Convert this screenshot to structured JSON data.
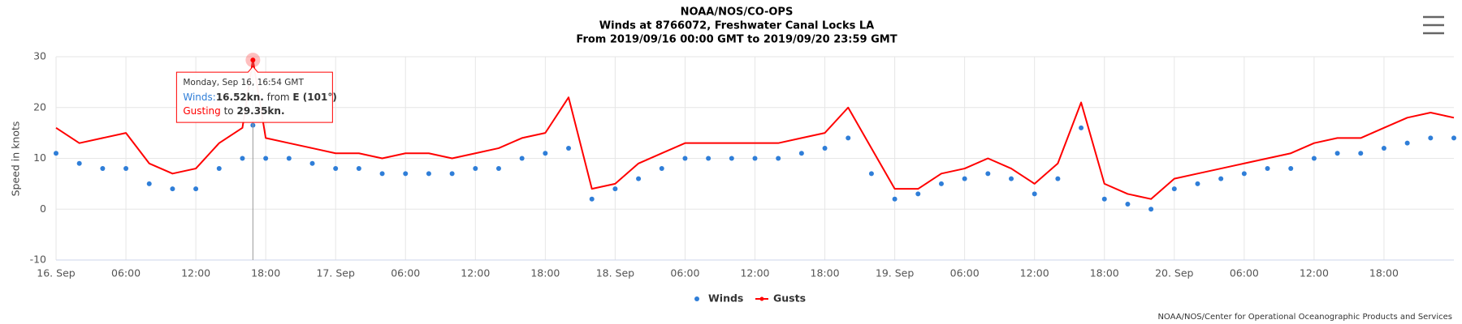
{
  "chart_data": {
    "type": "line",
    "title": "NOAA/NOS/CO-OPS",
    "subtitle": [
      "Winds at 8766072, Freshwater Canal Locks LA",
      "From 2019/09/16 00:00 GMT to 2019/09/20 23:59 GMT"
    ],
    "y_label": "Speed in knots",
    "credit": "NOAA/NOS/Center for Operational Oceanographic Products and Services",
    "x": [
      0,
      2,
      4,
      6,
      8,
      10,
      12,
      14,
      16,
      16.9,
      18,
      20,
      22,
      24,
      26,
      28,
      30,
      32,
      34,
      36,
      38,
      40,
      42,
      44,
      46,
      48,
      50,
      52,
      54,
      56,
      58,
      60,
      62,
      64,
      66,
      68,
      70,
      72,
      74,
      76,
      78,
      80,
      82,
      84,
      86,
      88,
      90,
      92,
      94,
      96,
      98,
      100,
      102,
      104,
      106,
      108,
      110,
      112,
      114,
      116,
      118,
      120
    ],
    "series": [
      {
        "name": "Winds",
        "color": "#2f7ed8",
        "style": "markers",
        "values": [
          11,
          9,
          8,
          8,
          5,
          4,
          4,
          8,
          10,
          16.52,
          10,
          10,
          9,
          8,
          8,
          7,
          7,
          7,
          7,
          8,
          8,
          10,
          11,
          12,
          2,
          4,
          6,
          8,
          10,
          10,
          10,
          10,
          10,
          11,
          12,
          14,
          7,
          2,
          3,
          5,
          6,
          7,
          6,
          3,
          6,
          16,
          2,
          1,
          0,
          4,
          5,
          6,
          7,
          8,
          8,
          10,
          11,
          11,
          12,
          13,
          14,
          14
        ]
      },
      {
        "name": "Gusts",
        "color": "#ff0000",
        "style": "line",
        "values": [
          16,
          13,
          14,
          15,
          9,
          7,
          8,
          13,
          16,
          29.35,
          14,
          13,
          12,
          11,
          11,
          10,
          11,
          11,
          10,
          11,
          12,
          14,
          15,
          22,
          4,
          5,
          9,
          11,
          13,
          13,
          13,
          13,
          13,
          14,
          15,
          20,
          12,
          4,
          4,
          7,
          8,
          10,
          8,
          5,
          9,
          21,
          5,
          3,
          2,
          6,
          7,
          8,
          9,
          10,
          11,
          13,
          14,
          14,
          16,
          18,
          19,
          18
        ]
      }
    ],
    "xlim": [
      0,
      120
    ],
    "xticks": [
      {
        "value": 0,
        "label": "16. Sep"
      },
      {
        "value": 6,
        "label": "06:00"
      },
      {
        "value": 12,
        "label": "12:00"
      },
      {
        "value": 18,
        "label": "18:00"
      },
      {
        "value": 24,
        "label": "17. Sep"
      },
      {
        "value": 30,
        "label": "06:00"
      },
      {
        "value": 36,
        "label": "12:00"
      },
      {
        "value": 42,
        "label": "18:00"
      },
      {
        "value": 48,
        "label": "18. Sep"
      },
      {
        "value": 54,
        "label": "06:00"
      },
      {
        "value": 60,
        "label": "12:00"
      },
      {
        "value": 66,
        "label": "18:00"
      },
      {
        "value": 72,
        "label": "19. Sep"
      },
      {
        "value": 78,
        "label": "06:00"
      },
      {
        "value": 84,
        "label": "12:00"
      },
      {
        "value": 90,
        "label": "18:00"
      },
      {
        "value": 96,
        "label": "20. Sep"
      },
      {
        "value": 102,
        "label": "06:00"
      },
      {
        "value": 108,
        "label": "12:00"
      },
      {
        "value": 114,
        "label": "18:00"
      }
    ],
    "ylim": [
      -10,
      30
    ],
    "yticks": [
      -10,
      0,
      10,
      20,
      30
    ],
    "grid": true,
    "legend": "bottom",
    "tooltip": {
      "date": "Monday, Sep 16, 16:54 GMT",
      "winds_label": "Winds:",
      "winds_value": "16.52kn.",
      "from": " from ",
      "direction": "E (101°)",
      "gust_label": "Gusting",
      "to": " to ",
      "gust_value": "29.35kn."
    }
  }
}
